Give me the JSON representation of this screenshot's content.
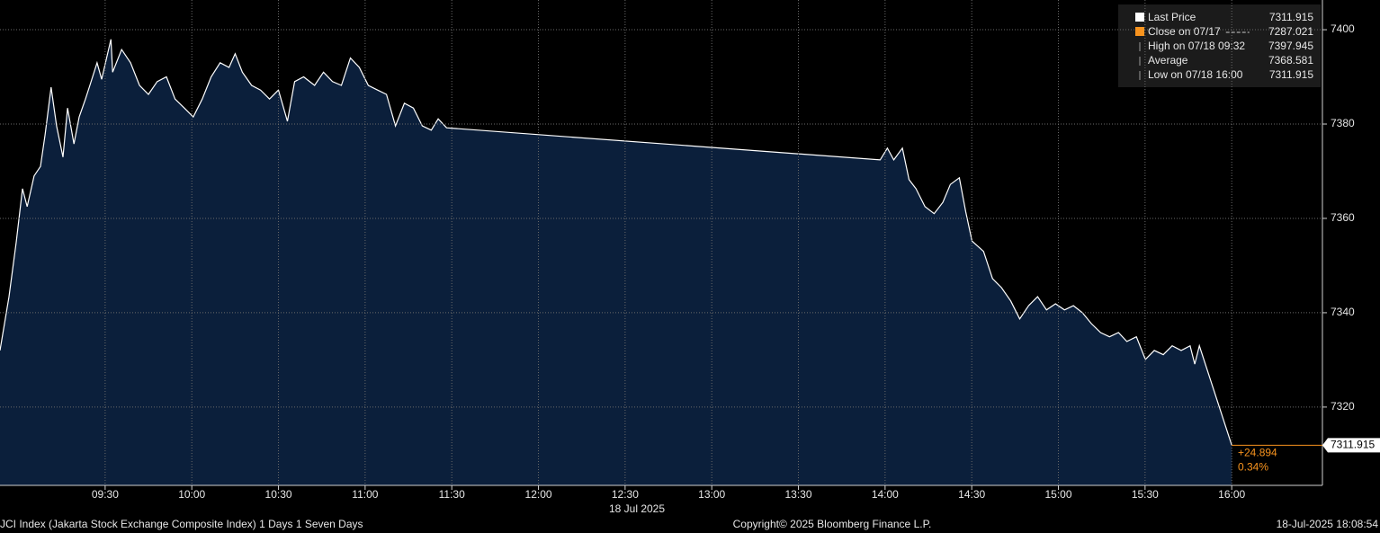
{
  "chart_data": {
    "type": "area",
    "series": [
      {
        "name": "Last Price",
        "color": "#ffffff",
        "fill": "#0b1f3b",
        "x": [
          533.6,
          536.7,
          539.2,
          541.4,
          543,
          545.4,
          547.6,
          549.2,
          551.3,
          553.2,
          555.4,
          557,
          559.2,
          561,
          563.2,
          564.7,
          567.2,
          568.8,
          572,
          572.6,
          575.7,
          578.8,
          581.9,
          585,
          588,
          591.2,
          594.2,
          597.4,
          600.5,
          603.6,
          606.7,
          609.8,
          612.9,
          615,
          617.5,
          620.7,
          623.8,
          626.9,
          630,
          633.1,
          635.6,
          638.7,
          642.5,
          645.6,
          648.7,
          651.8,
          654.9,
          658,
          661.1,
          664.3,
          667.4,
          670.5,
          673.6,
          676.7,
          679.8,
          682.9,
          685.3,
          688.2,
          838.3,
          840.8,
          843,
          846,
          848.3,
          850.7,
          853.8,
          857,
          860,
          862.6,
          865.7,
          867.9,
          870.1,
          874.1,
          877.2,
          880.3,
          883.5,
          886.6,
          889.7,
          892.8,
          895.9,
          899,
          902.1,
          905.2,
          908.3,
          911.4,
          914.6,
          917.7,
          920.8,
          923.7,
          927,
          930.1,
          933.2,
          936.3,
          939.4,
          942.5,
          945.6,
          947.2,
          948.8,
          960
        ],
        "values": [
          7332,
          7343.4,
          7354.9,
          7366.3,
          7362.5,
          7369,
          7371,
          7377.7,
          7387.8,
          7379.6,
          7373,
          7383.4,
          7375.8,
          7381.5,
          7385.3,
          7388.2,
          7393,
          7389.5,
          7397.945,
          7391,
          7395.8,
          7393,
          7388.2,
          7386.3,
          7389,
          7390,
          7385.3,
          7383.4,
          7381.5,
          7385.3,
          7390,
          7393,
          7392,
          7394.9,
          7391,
          7388.2,
          7387.2,
          7385.3,
          7387.2,
          7380.6,
          7389,
          7390,
          7388.2,
          7391,
          7389,
          7388.2,
          7394,
          7392,
          7388.2,
          7387.2,
          7386.3,
          7379.6,
          7384.4,
          7383.4,
          7379.6,
          7378.7,
          7381.1,
          7379.2,
          7372.4,
          7374.9,
          7372.4,
          7374.9,
          7368.2,
          7366.3,
          7362.5,
          7361,
          7363.4,
          7367.2,
          7368.6,
          7361.5,
          7355.2,
          7353,
          7347.2,
          7345.3,
          7342.5,
          7338.7,
          7341.5,
          7343.4,
          7340.6,
          7341.9,
          7340.6,
          7341.5,
          7340,
          7337.7,
          7335.8,
          7334.9,
          7335.8,
          7333.9,
          7334.9,
          7330.1,
          7332,
          7331.1,
          7333,
          7332,
          7333,
          7329.1,
          7333,
          7311.915
        ]
      }
    ],
    "legend_items": [
      {
        "name": "Close on 07/17",
        "value": 7287.021,
        "color": "#f7931e"
      },
      {
        "name": "High on 07/18 09:32",
        "value": 7397.945
      },
      {
        "name": "Average",
        "value": 7368.581
      },
      {
        "name": "Low on 07/18 16:00",
        "value": 7311.915
      }
    ],
    "change_label": "+24.894",
    "change_pct_label": "0.34%",
    "date_label": "18 Jul 2025",
    "xlim": [
      533.6,
      991.4
    ],
    "xticks": [
      {
        "value": 570,
        "label": "09:30"
      },
      {
        "value": 600,
        "label": "10:00"
      },
      {
        "value": 630,
        "label": "10:30"
      },
      {
        "value": 660,
        "label": "11:00"
      },
      {
        "value": 690,
        "label": "11:30"
      },
      {
        "value": 720,
        "label": "12:00"
      },
      {
        "value": 750,
        "label": "12:30"
      },
      {
        "value": 780,
        "label": "13:00"
      },
      {
        "value": 810,
        "label": "13:30"
      },
      {
        "value": 840,
        "label": "14:00"
      },
      {
        "value": 870,
        "label": "14:30"
      },
      {
        "value": 900,
        "label": "15:00"
      },
      {
        "value": 930,
        "label": "15:30"
      },
      {
        "value": 960,
        "label": "16:00"
      }
    ],
    "ylim": [
      7303.4,
      7406.3
    ],
    "yticks": [
      7320,
      7340,
      7360,
      7380,
      7400
    ],
    "grid": true
  },
  "footer": {
    "left": "JCI Index (Jakarta Stock Exchange Composite Index) 1 Days 1 Seven Days",
    "center": "Copyright© 2025 Bloomberg Finance L.P.",
    "right": "18-Jul-2025 18:08:54"
  }
}
